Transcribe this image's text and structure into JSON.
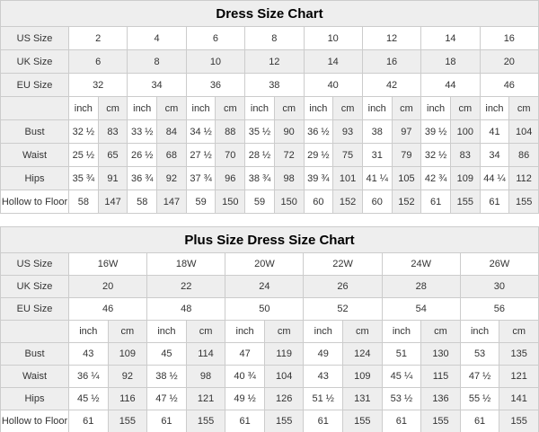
{
  "colors": {
    "shaded_cell": "#eeeeee",
    "plain_cell": "#ffffff",
    "border": "#cccccc",
    "text": "#333333",
    "title_text": "#000000",
    "bottom_bar": "#4d4d4d"
  },
  "chart_data": [
    {
      "type": "table",
      "title": "Dress Size Chart",
      "size_rows": [
        {
          "label": "US Size",
          "values": [
            "2",
            "4",
            "6",
            "8",
            "10",
            "12",
            "14",
            "16"
          ]
        },
        {
          "label": "UK Size",
          "values": [
            "6",
            "8",
            "10",
            "12",
            "14",
            "16",
            "18",
            "20"
          ]
        },
        {
          "label": "EU Size",
          "values": [
            "32",
            "34",
            "36",
            "38",
            "40",
            "42",
            "44",
            "46"
          ]
        }
      ],
      "unit_labels": [
        "inch",
        "cm"
      ],
      "measure_rows": [
        {
          "label": "Bust",
          "values": [
            "32 ½",
            "83",
            "33 ½",
            "84",
            "34 ½",
            "88",
            "35 ½",
            "90",
            "36 ½",
            "93",
            "38",
            "97",
            "39 ½",
            "100",
            "41",
            "104"
          ]
        },
        {
          "label": "Waist",
          "values": [
            "25 ½",
            "65",
            "26 ½",
            "68",
            "27 ½",
            "70",
            "28 ½",
            "72",
            "29 ½",
            "75",
            "31",
            "79",
            "32 ½",
            "83",
            "34",
            "86"
          ]
        },
        {
          "label": "Hips",
          "values": [
            "35 ¾",
            "91",
            "36 ¾",
            "92",
            "37 ¾",
            "96",
            "38 ¾",
            "98",
            "39 ¾",
            "101",
            "41 ¼",
            "105",
            "42 ¾",
            "109",
            "44 ¼",
            "112"
          ]
        },
        {
          "label": "Hollow to Floor",
          "values": [
            "58",
            "147",
            "58",
            "147",
            "59",
            "150",
            "59",
            "150",
            "60",
            "152",
            "60",
            "152",
            "61",
            "155",
            "61",
            "155"
          ]
        }
      ]
    },
    {
      "type": "table",
      "title": "Plus Size Dress Size Chart",
      "size_rows": [
        {
          "label": "US Size",
          "values": [
            "16W",
            "18W",
            "20W",
            "22W",
            "24W",
            "26W"
          ]
        },
        {
          "label": "UK Size",
          "values": [
            "20",
            "22",
            "24",
            "26",
            "28",
            "30"
          ]
        },
        {
          "label": "EU Size",
          "values": [
            "46",
            "48",
            "50",
            "52",
            "54",
            "56"
          ]
        }
      ],
      "unit_labels": [
        "inch",
        "cm"
      ],
      "measure_rows": [
        {
          "label": "Bust",
          "values": [
            "43",
            "109",
            "45",
            "114",
            "47",
            "119",
            "49",
            "124",
            "51",
            "130",
            "53",
            "135"
          ]
        },
        {
          "label": "Waist",
          "values": [
            "36 ¼",
            "92",
            "38 ½",
            "98",
            "40 ¾",
            "104",
            "43",
            "109",
            "45 ¼",
            "115",
            "47 ½",
            "121"
          ]
        },
        {
          "label": "Hips",
          "values": [
            "45 ½",
            "116",
            "47 ½",
            "121",
            "49 ½",
            "126",
            "51 ½",
            "131",
            "53 ½",
            "136",
            "55 ½",
            "141"
          ]
        },
        {
          "label": "Hollow to Floor",
          "values": [
            "61",
            "155",
            "61",
            "155",
            "61",
            "155",
            "61",
            "155",
            "61",
            "155",
            "61",
            "155"
          ]
        }
      ]
    }
  ]
}
